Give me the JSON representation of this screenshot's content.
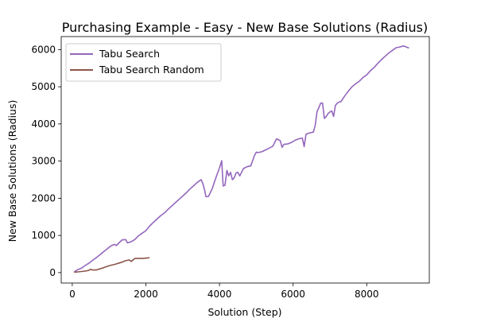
{
  "chart_data": {
    "type": "line",
    "title": "Purchasing Example - Easy - New Base Solutions (Radius)",
    "xlabel": "Solution (Step)",
    "ylabel": "New Base Solutions (Radius)",
    "xlim": [
      -300,
      9700
    ],
    "ylim": [
      -280,
      6350
    ],
    "xticks": [
      0,
      2000,
      4000,
      6000,
      8000
    ],
    "yticks": [
      0,
      1000,
      2000,
      3000,
      4000,
      5000,
      6000
    ],
    "grid": false,
    "legend_position": "top-left",
    "series": [
      {
        "name": "Tabu Search",
        "color": "#9467bd",
        "points": [
          [
            50,
            20
          ],
          [
            150,
            80
          ],
          [
            250,
            120
          ],
          [
            350,
            190
          ],
          [
            450,
            250
          ],
          [
            550,
            330
          ],
          [
            650,
            400
          ],
          [
            750,
            480
          ],
          [
            850,
            560
          ],
          [
            950,
            640
          ],
          [
            1050,
            720
          ],
          [
            1150,
            760
          ],
          [
            1200,
            730
          ],
          [
            1280,
            810
          ],
          [
            1350,
            880
          ],
          [
            1450,
            890
          ],
          [
            1500,
            800
          ],
          [
            1600,
            830
          ],
          [
            1700,
            890
          ],
          [
            1800,
            990
          ],
          [
            1900,
            1060
          ],
          [
            2000,
            1130
          ],
          [
            2100,
            1250
          ],
          [
            2200,
            1350
          ],
          [
            2300,
            1440
          ],
          [
            2400,
            1530
          ],
          [
            2500,
            1600
          ],
          [
            2600,
            1700
          ],
          [
            2700,
            1790
          ],
          [
            2800,
            1880
          ],
          [
            2900,
            1970
          ],
          [
            3000,
            2060
          ],
          [
            3100,
            2150
          ],
          [
            3200,
            2250
          ],
          [
            3300,
            2340
          ],
          [
            3400,
            2430
          ],
          [
            3500,
            2500
          ],
          [
            3550,
            2390
          ],
          [
            3600,
            2200
          ],
          [
            3630,
            2040
          ],
          [
            3700,
            2050
          ],
          [
            3800,
            2250
          ],
          [
            3900,
            2550
          ],
          [
            4000,
            2820
          ],
          [
            4060,
            3010
          ],
          [
            4100,
            2330
          ],
          [
            4150,
            2350
          ],
          [
            4200,
            2750
          ],
          [
            4250,
            2600
          ],
          [
            4300,
            2700
          ],
          [
            4350,
            2500
          ],
          [
            4400,
            2550
          ],
          [
            4450,
            2680
          ],
          [
            4500,
            2700
          ],
          [
            4550,
            2600
          ],
          [
            4650,
            2800
          ],
          [
            4750,
            2850
          ],
          [
            4850,
            2870
          ],
          [
            4950,
            3150
          ],
          [
            5000,
            3240
          ],
          [
            5050,
            3230
          ],
          [
            5150,
            3250
          ],
          [
            5250,
            3300
          ],
          [
            5350,
            3350
          ],
          [
            5450,
            3400
          ],
          [
            5550,
            3600
          ],
          [
            5650,
            3550
          ],
          [
            5700,
            3370
          ],
          [
            5750,
            3450
          ],
          [
            5850,
            3460
          ],
          [
            5950,
            3500
          ],
          [
            6050,
            3560
          ],
          [
            6150,
            3600
          ],
          [
            6250,
            3620
          ],
          [
            6300,
            3390
          ],
          [
            6350,
            3720
          ],
          [
            6450,
            3760
          ],
          [
            6550,
            3780
          ],
          [
            6600,
            3960
          ],
          [
            6650,
            4330
          ],
          [
            6700,
            4440
          ],
          [
            6750,
            4560
          ],
          [
            6800,
            4560
          ],
          [
            6850,
            4150
          ],
          [
            6900,
            4200
          ],
          [
            6950,
            4280
          ],
          [
            7000,
            4320
          ],
          [
            7050,
            4350
          ],
          [
            7100,
            4200
          ],
          [
            7150,
            4500
          ],
          [
            7200,
            4560
          ],
          [
            7250,
            4590
          ],
          [
            7300,
            4600
          ],
          [
            7400,
            4750
          ],
          [
            7500,
            4880
          ],
          [
            7600,
            5000
          ],
          [
            7700,
            5080
          ],
          [
            7800,
            5150
          ],
          [
            7900,
            5250
          ],
          [
            8000,
            5320
          ],
          [
            8100,
            5430
          ],
          [
            8200,
            5520
          ],
          [
            8300,
            5630
          ],
          [
            8400,
            5730
          ],
          [
            8500,
            5820
          ],
          [
            8600,
            5910
          ],
          [
            8700,
            5980
          ],
          [
            8800,
            6050
          ],
          [
            8900,
            6070
          ],
          [
            9000,
            6100
          ],
          [
            9150,
            6040
          ]
        ]
      },
      {
        "name": "Tabu Search Random",
        "color": "#8c564b",
        "points": [
          [
            50,
            10
          ],
          [
            150,
            20
          ],
          [
            250,
            30
          ],
          [
            350,
            40
          ],
          [
            450,
            60
          ],
          [
            500,
            90
          ],
          [
            550,
            70
          ],
          [
            650,
            70
          ],
          [
            750,
            100
          ],
          [
            850,
            130
          ],
          [
            950,
            170
          ],
          [
            1050,
            200
          ],
          [
            1150,
            220
          ],
          [
            1250,
            250
          ],
          [
            1350,
            280
          ],
          [
            1450,
            320
          ],
          [
            1550,
            340
          ],
          [
            1600,
            300
          ],
          [
            1700,
            380
          ],
          [
            1800,
            380
          ],
          [
            1900,
            380
          ],
          [
            2000,
            390
          ],
          [
            2100,
            400
          ]
        ]
      }
    ]
  }
}
